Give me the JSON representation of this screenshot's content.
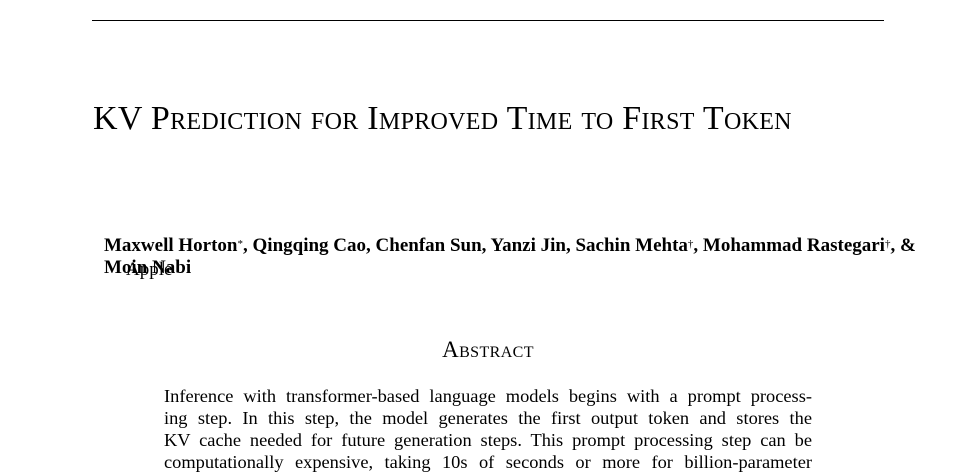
{
  "title": "KV Prediction for Improved Time to First Token",
  "authors": {
    "names": [
      {
        "name": "Maxwell Horton",
        "mark": "*"
      },
      {
        "name": "Qingqing Cao",
        "mark": ""
      },
      {
        "name": "Chenfan Sun",
        "mark": ""
      },
      {
        "name": "Yanzi Jin",
        "mark": ""
      },
      {
        "name": "Sachin Mehta",
        "mark": "†"
      },
      {
        "name": "Mohammad Rastegari",
        "mark": "†"
      },
      {
        "name": "Moin Nabi",
        "mark": ""
      }
    ],
    "affiliation": "Apple"
  },
  "abstract": {
    "heading": "Abstract",
    "lines": [
      "Inference with transformer-based language models begins with a prompt process-",
      "ing step.  In this step, the model generates the first output token and stores the",
      "KV cache needed for future generation steps. This prompt processing step can be",
      "computationally expensive, taking 10s of seconds or more for billion-parameter"
    ]
  }
}
